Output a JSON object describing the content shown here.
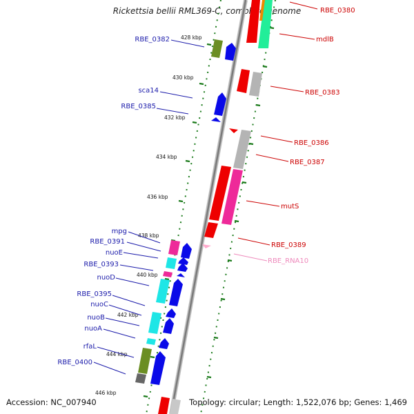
{
  "title": "Rickettsia bellii RML369-C, complete genome",
  "footer": {
    "accession": "Accession: NC_007940",
    "summary": "Topology: circular; Length: 1,522,076 bp; Genes: 1,469"
  },
  "scale_labels": [
    "428 kbp",
    "430 kbp",
    "432 kbp",
    "434 kbp",
    "436 kbp",
    "438 kbp",
    "440 kbp",
    "442 kbp",
    "444 kbp",
    "446 kbp"
  ],
  "left_labels": [
    "RBE_0382",
    "sca14",
    "RBE_0385",
    "mpg",
    "RBE_0391",
    "nuoE",
    "RBE_0393",
    "nuoD",
    "RBE_0395",
    "nuoC",
    "nuoB",
    "nuoA",
    "rfaL",
    "RBE_0400"
  ],
  "right_labels": [
    "RBE_0380",
    "mdlB",
    "RBE_0383",
    "RBE_0386",
    "RBE_0387",
    "mutS",
    "RBE_0389",
    "RBE_RNA10"
  ],
  "colors": {
    "backbone": "#888888",
    "label_left": "#1a1aaa",
    "label_right": "#cc0000",
    "label_rna": "#ee88bb",
    "tick": "#1a7a1a",
    "blue": "#0a0ae8",
    "red": "#ee0000",
    "magenta": "#ee2a99",
    "cyan": "#1ee6e6",
    "olive": "#6b8e23",
    "gray": "#a0a0a0",
    "green": "#22ee99",
    "orange": "#ee8800"
  }
}
